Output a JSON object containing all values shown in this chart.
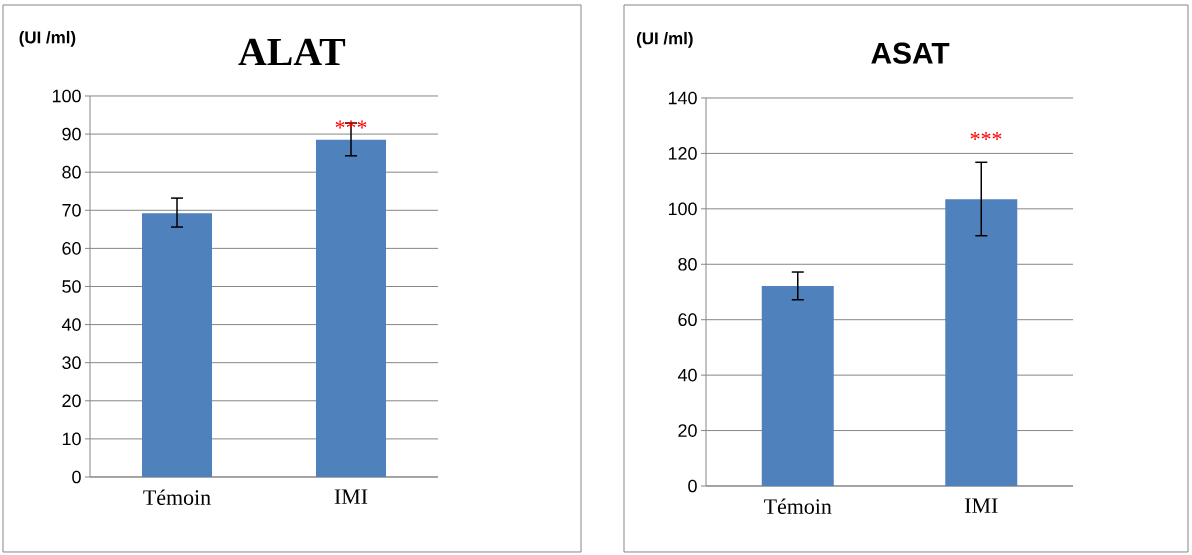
{
  "chart_data": [
    {
      "type": "bar",
      "title": "ALAT",
      "ylabel": "(UI /ml)",
      "categories": [
        "Témoin",
        "IMI"
      ],
      "values": [
        69.2,
        88.5
      ],
      "errors": [
        [
          65.6,
          73.2
        ],
        [
          84.3,
          92.9
        ]
      ],
      "color": "#4f81bd",
      "ylim": [
        0,
        100
      ],
      "yticks": [
        0,
        10,
        20,
        30,
        40,
        50,
        60,
        70,
        80,
        90,
        100
      ],
      "grid": "y",
      "annotations": [
        {
          "text": "***",
          "x": "IMI",
          "y": 91.7
        }
      ]
    },
    {
      "type": "bar",
      "title": "ASAT",
      "ylabel": "(UI /ml)",
      "categories": [
        "Témoin",
        "IMI"
      ],
      "values": [
        72.2,
        103.5
      ],
      "errors": [
        [
          67.2,
          77.2
        ],
        [
          90.3,
          116.8
        ]
      ],
      "color": "#4f81bd",
      "ylim": [
        0,
        140
      ],
      "yticks": [
        0,
        20,
        40,
        60,
        80,
        100,
        120,
        140
      ],
      "grid": "y",
      "annotations": [
        "***"
      ]
    }
  ]
}
